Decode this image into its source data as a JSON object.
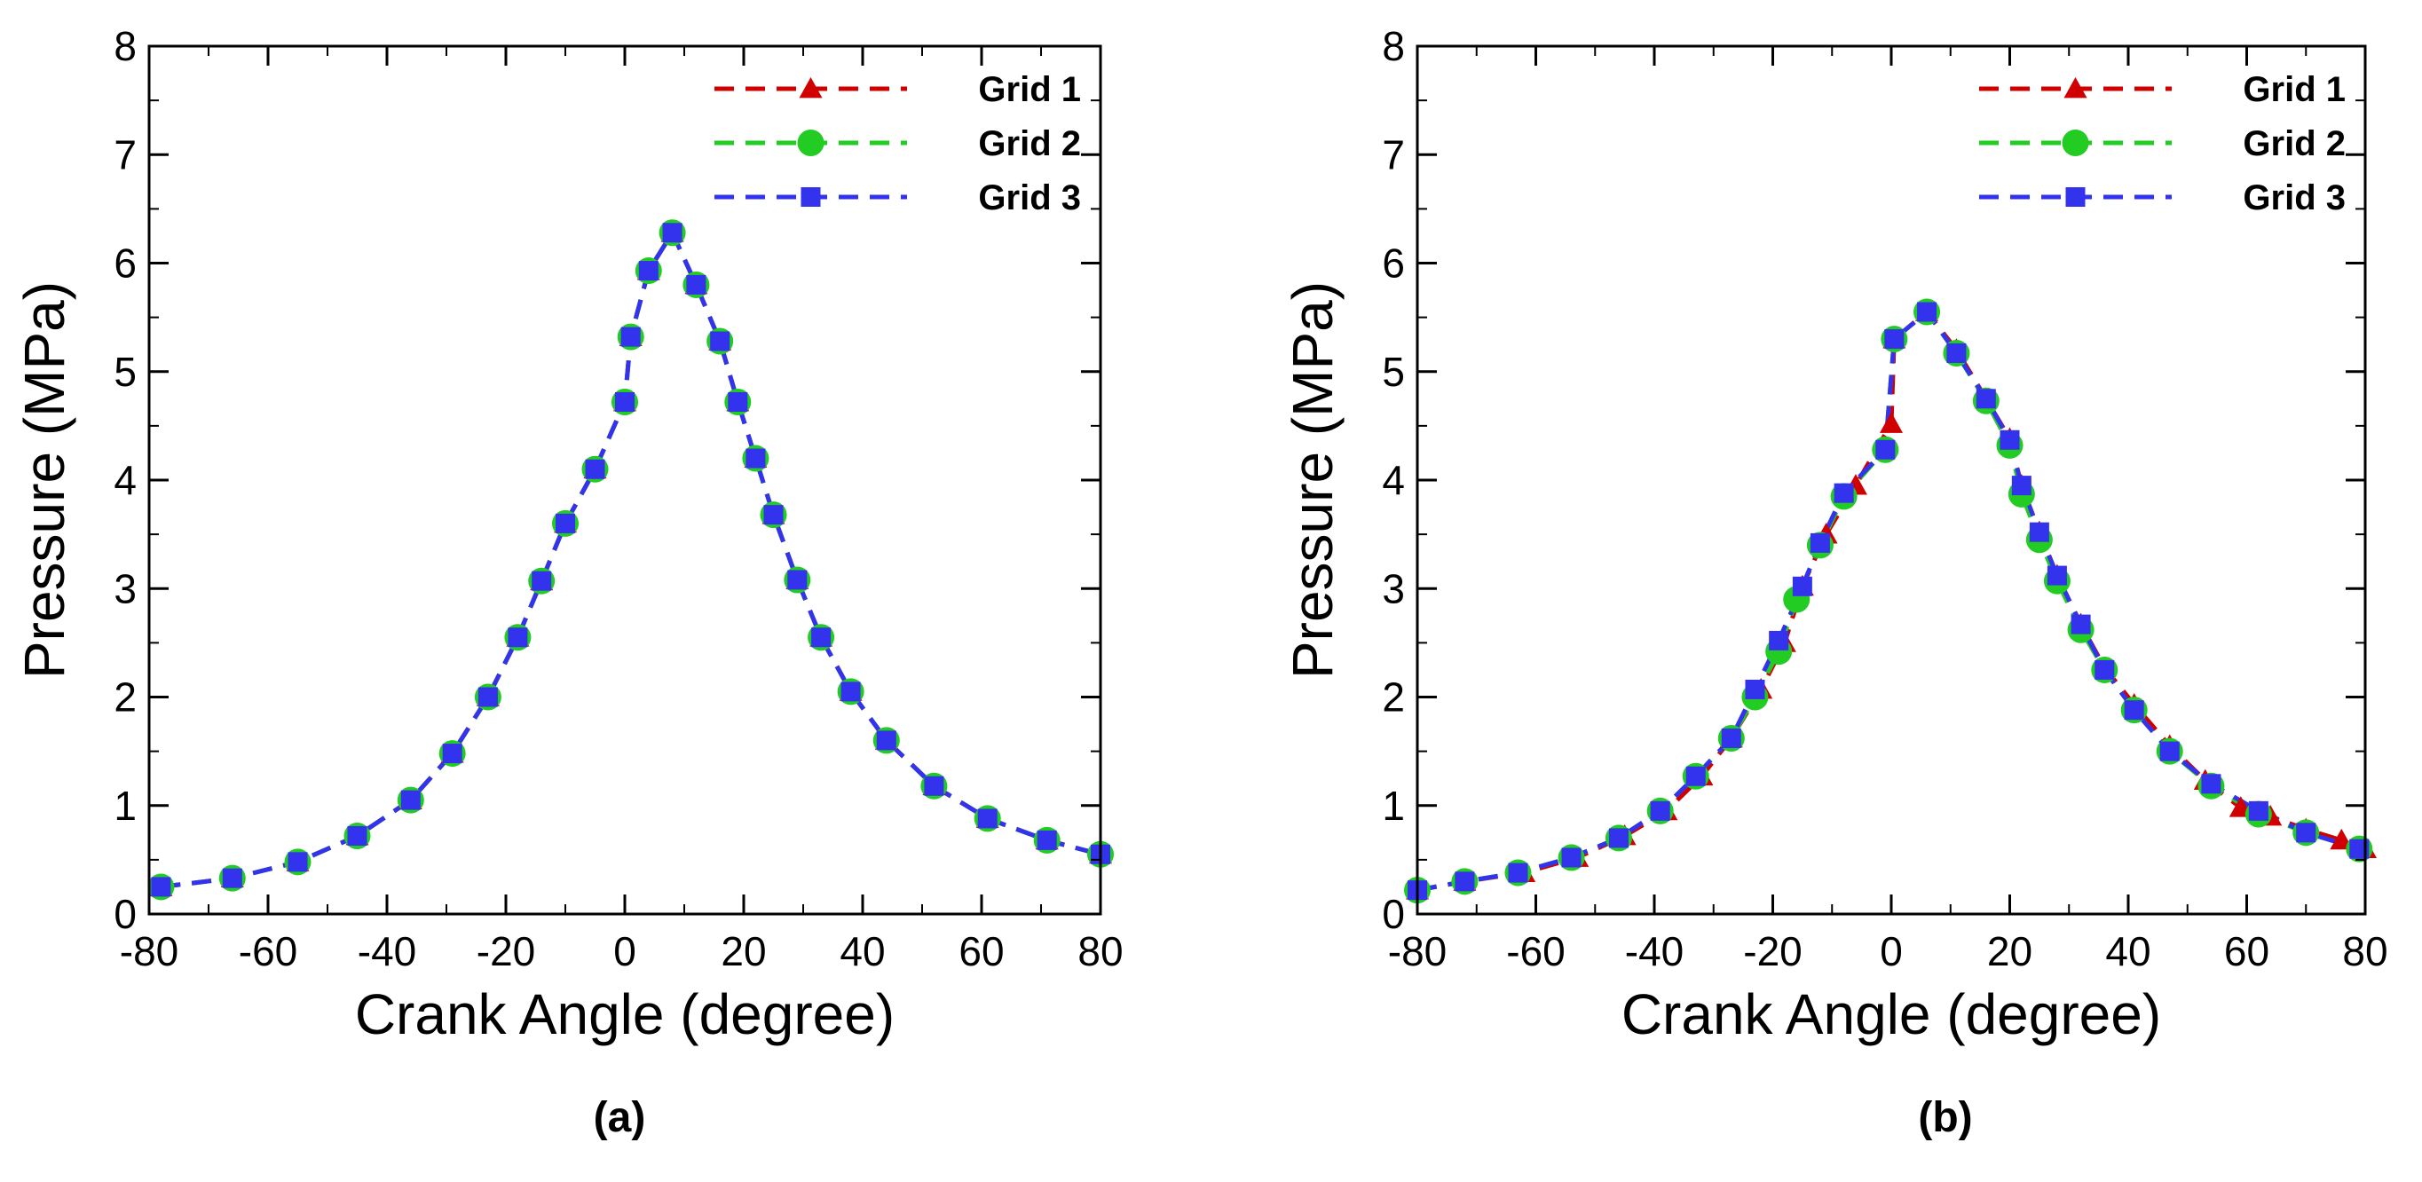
{
  "chart_data": [
    {
      "type": "line",
      "caption": "(a)",
      "xlabel": "Crank Angle (degree)",
      "ylabel": "Pressure (MPa)",
      "xlim": [
        -80,
        80
      ],
      "ylim": [
        0,
        8
      ],
      "xticks": [
        -80,
        -60,
        -40,
        -20,
        0,
        20,
        40,
        60,
        80
      ],
      "yticks": [
        0,
        1,
        2,
        3,
        4,
        5,
        6,
        7,
        8
      ],
      "legend_position": "top-right",
      "series": [
        {
          "name": "Grid 1",
          "color": "#d10000",
          "marker": "triangle",
          "x": [
            -78,
            -66,
            -55,
            -45,
            -36,
            -29,
            -23,
            -18,
            -14,
            -10,
            -5,
            0,
            1,
            4,
            8,
            12,
            16,
            19,
            22,
            25,
            29,
            33,
            38,
            44,
            52,
            61,
            71,
            80
          ],
          "y": [
            0.25,
            0.33,
            0.48,
            0.72,
            1.05,
            1.48,
            2.0,
            2.55,
            3.07,
            3.6,
            4.1,
            4.72,
            5.32,
            5.93,
            6.28,
            5.8,
            5.28,
            4.72,
            4.2,
            3.68,
            3.08,
            2.55,
            2.05,
            1.6,
            1.18,
            0.88,
            0.68,
            0.55
          ]
        },
        {
          "name": "Grid 2",
          "color": "#22cc22",
          "marker": "circle",
          "x": [
            -78,
            -66,
            -55,
            -45,
            -36,
            -29,
            -23,
            -18,
            -14,
            -10,
            -5,
            0,
            1,
            4,
            8,
            12,
            16,
            19,
            22,
            25,
            29,
            33,
            38,
            44,
            52,
            61,
            71,
            80
          ],
          "y": [
            0.25,
            0.33,
            0.48,
            0.72,
            1.05,
            1.48,
            2.0,
            2.55,
            3.07,
            3.6,
            4.1,
            4.72,
            5.32,
            5.93,
            6.28,
            5.8,
            5.28,
            4.72,
            4.2,
            3.68,
            3.08,
            2.55,
            2.05,
            1.6,
            1.18,
            0.88,
            0.68,
            0.55
          ]
        },
        {
          "name": "Grid 3",
          "color": "#3333ee",
          "marker": "square",
          "x": [
            -78,
            -66,
            -55,
            -45,
            -36,
            -29,
            -23,
            -18,
            -14,
            -10,
            -5,
            0,
            1,
            4,
            8,
            12,
            16,
            19,
            22,
            25,
            29,
            33,
            38,
            44,
            52,
            61,
            71,
            80
          ],
          "y": [
            0.25,
            0.33,
            0.48,
            0.72,
            1.05,
            1.48,
            2.0,
            2.55,
            3.07,
            3.6,
            4.1,
            4.72,
            5.32,
            5.93,
            6.28,
            5.8,
            5.28,
            4.72,
            4.2,
            3.68,
            3.08,
            2.55,
            2.05,
            1.6,
            1.18,
            0.88,
            0.68,
            0.55
          ]
        }
      ]
    },
    {
      "type": "line",
      "caption": "(b)",
      "xlabel": "Crank Angle (degree)",
      "ylabel": "Pressure (MPa)",
      "xlim": [
        -80,
        80
      ],
      "ylim": [
        0,
        8
      ],
      "xticks": [
        -80,
        -60,
        -40,
        -20,
        0,
        20,
        40,
        60,
        80
      ],
      "yticks": [
        0,
        1,
        2,
        3,
        4,
        5,
        6,
        7,
        8
      ],
      "legend_position": "top-right",
      "series": [
        {
          "name": "Grid 1",
          "color": "#d10000",
          "marker": "triangle",
          "x": [
            -80,
            -72,
            -62,
            -53,
            -45,
            -38,
            -32,
            -27,
            -22,
            -18,
            -15,
            -11,
            -6,
            0,
            0.5,
            6,
            11,
            16,
            20,
            22,
            25,
            28,
            32,
            36,
            41,
            47,
            53,
            59,
            64,
            70,
            76,
            80
          ],
          "y": [
            0.22,
            0.3,
            0.38,
            0.52,
            0.72,
            0.95,
            1.27,
            1.62,
            2.07,
            2.5,
            3.02,
            3.5,
            3.95,
            4.52,
            5.3,
            5.55,
            5.2,
            4.75,
            4.38,
            3.95,
            3.52,
            3.12,
            2.67,
            2.27,
            1.93,
            1.55,
            1.23,
            0.98,
            0.9,
            0.78,
            0.68,
            0.6
          ]
        },
        {
          "name": "Grid 2",
          "color": "#22cc22",
          "marker": "circle",
          "x": [
            -80,
            -72,
            -63,
            -54,
            -46,
            -39,
            -33,
            -27,
            -23,
            -19,
            -16,
            -12,
            -8,
            -1,
            0.5,
            6,
            11,
            16,
            20,
            22,
            25,
            28,
            32,
            36,
            41,
            47,
            54,
            62,
            70,
            79
          ],
          "y": [
            0.22,
            0.3,
            0.38,
            0.52,
            0.7,
            0.95,
            1.27,
            1.62,
            2.0,
            2.42,
            2.9,
            3.4,
            3.85,
            4.28,
            5.3,
            5.55,
            5.17,
            4.73,
            4.32,
            3.87,
            3.45,
            3.07,
            2.62,
            2.25,
            1.88,
            1.5,
            1.18,
            0.92,
            0.75,
            0.6
          ]
        },
        {
          "name": "Grid 3",
          "color": "#3333ee",
          "marker": "square",
          "x": [
            -80,
            -72,
            -63,
            -54,
            -46,
            -39,
            -33,
            -27,
            -23,
            -19,
            -15,
            -12,
            -8,
            -1,
            0.5,
            6,
            11,
            16,
            20,
            22,
            25,
            28,
            32,
            36,
            41,
            47,
            54,
            62,
            70,
            79
          ],
          "y": [
            0.22,
            0.3,
            0.38,
            0.52,
            0.7,
            0.95,
            1.27,
            1.62,
            2.07,
            2.52,
            3.02,
            3.42,
            3.88,
            4.28,
            5.3,
            5.55,
            5.17,
            4.75,
            4.37,
            3.95,
            3.52,
            3.12,
            2.67,
            2.25,
            1.88,
            1.5,
            1.2,
            0.95,
            0.75,
            0.6
          ]
        }
      ]
    }
  ]
}
